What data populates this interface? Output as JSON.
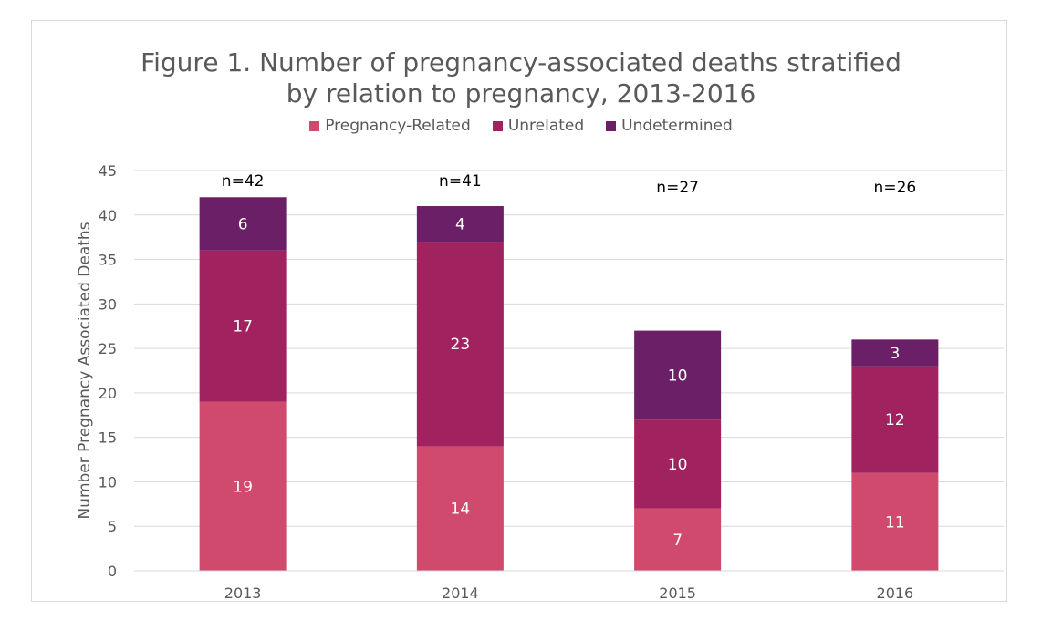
{
  "chart_data": {
    "type": "bar",
    "stacked": true,
    "title": "Figure 1. Number of pregnancy-associated deaths stratified by relation to pregnancy, 2013-2016",
    "title_lines": [
      "Figure 1. Number of pregnancy-associated deaths stratified",
      "by relation to pregnancy, 2013-2016"
    ],
    "xlabel": "",
    "ylabel": "Number Pregnancy Associated Deaths",
    "ylim": [
      0,
      45
    ],
    "yticks": [
      0,
      5,
      10,
      15,
      20,
      25,
      30,
      35,
      40,
      45
    ],
    "grid": true,
    "legend_position": "top",
    "categories": [
      "2013",
      "2014",
      "2015",
      "2016"
    ],
    "totals_labels": [
      "n=42",
      "n=41",
      "n=27",
      "n=26"
    ],
    "series": [
      {
        "name": "Pregnancy-Related",
        "color": "#d04a6e",
        "values": [
          19,
          14,
          7,
          11
        ]
      },
      {
        "name": "Unrelated",
        "color": "#a0225e",
        "values": [
          17,
          23,
          10,
          12
        ]
      },
      {
        "name": "Undetermined",
        "color": "#6b1f66",
        "values": [
          6,
          4,
          10,
          3
        ]
      }
    ]
  }
}
